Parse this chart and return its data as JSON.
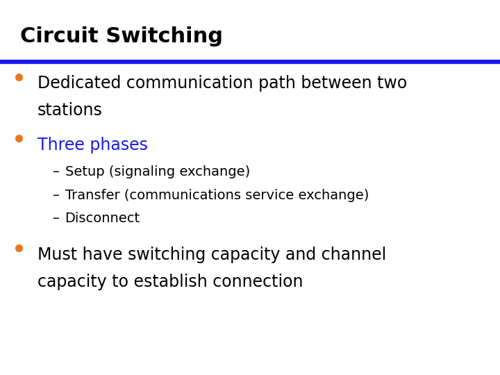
{
  "title": "Circuit Switching",
  "title_color": "#000000",
  "title_fontsize": 22,
  "divider_color": "#1a1aee",
  "background_color": "#FFFFFF",
  "bullet_color": "#E87722",
  "bullet1_text_line1": "Dedicated communication path between two",
  "bullet1_text_line2": "stations",
  "bullet1_color": "#000000",
  "bullet1_fontsize": 17,
  "bullet2_text": "Three phases",
  "bullet2_color": "#1a1aee",
  "bullet2_fontsize": 17,
  "sub_bullet_color": "#000000",
  "sub_bullets": [
    "Setup (signaling exchange)",
    "Transfer (communications service exchange)",
    "Disconnect"
  ],
  "sub_fontsize": 14,
  "bullet3_text_line1": "Must have switching capacity and channel",
  "bullet3_text_line2": "capacity to establish connection",
  "bullet3_color": "#000000",
  "bullet3_fontsize": 17,
  "font_family": "DejaVu Sans"
}
